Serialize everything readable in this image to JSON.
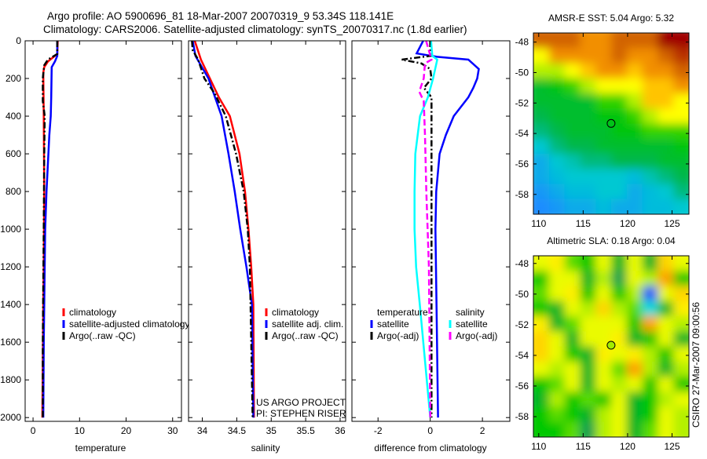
{
  "header": {
    "title_line1": "Argo profile: AO 5900696_81 18-Mar-2007 20070319_9 53.34S 118.141E",
    "title_line2": "Climatology: CARS2006. Satellite-adjusted climatology: synTS_20070317.nc (1.8d earlier)"
  },
  "credits": {
    "project": "US ARGO PROJECT",
    "pi": "PI: STEPHEN RISER",
    "stamp": "CSIRO 27-Mar-2007 09:00:56"
  },
  "chart_data": [
    {
      "id": "temperature",
      "type": "line",
      "xlabel": "temperature",
      "ylabel": "",
      "xlim": [
        -1.7,
        31.9
      ],
      "ylim": [
        0,
        2020
      ],
      "y_reversed": true,
      "xticks": [
        0,
        10,
        20,
        30
      ],
      "yticks": [
        0,
        200,
        400,
        600,
        800,
        1000,
        1200,
        1400,
        1600,
        1800,
        2000
      ],
      "legend": [
        "climatology",
        "satellite-adjusted climatology",
        "Argo(..raw -QC)"
      ],
      "legend_placement": "lower-middle",
      "series": [
        {
          "name": "climatology",
          "color": "#ff0000",
          "style": "solid",
          "points": [
            [
              0,
              5.3
            ],
            [
              70,
              5.2
            ],
            [
              90,
              4.2
            ],
            [
              110,
              3.2
            ],
            [
              140,
              2.4
            ],
            [
              170,
              2.2
            ],
            [
              400,
              2.3
            ],
            [
              800,
              2.4
            ],
            [
              1200,
              2.3
            ],
            [
              1400,
              2.2
            ],
            [
              2000,
              2.0
            ]
          ]
        },
        {
          "name": "satellite-adjusted climatology",
          "color": "#0000ff",
          "style": "solid",
          "points": [
            [
              0,
              5.2
            ],
            [
              80,
              5.2
            ],
            [
              110,
              4.7
            ],
            [
              140,
              4.0
            ],
            [
              300,
              3.9
            ],
            [
              400,
              3.8
            ],
            [
              500,
              3.5
            ],
            [
              600,
              3.3
            ],
            [
              800,
              2.9
            ],
            [
              1000,
              2.6
            ],
            [
              1200,
              2.5
            ],
            [
              1600,
              2.3
            ],
            [
              2000,
              2.2
            ]
          ]
        },
        {
          "name": "Argo(..raw -QC)",
          "color": "#000000",
          "style": "dashdot",
          "points": [
            [
              0,
              5.2
            ],
            [
              70,
              5.2
            ],
            [
              85,
              4.2
            ],
            [
              100,
              3.2
            ],
            [
              130,
              2.4
            ],
            [
              200,
              2.1
            ],
            [
              320,
              2.1
            ],
            [
              400,
              2.5
            ],
            [
              600,
              2.4
            ],
            [
              1000,
              2.3
            ],
            [
              1600,
              2.1
            ],
            [
              2000,
              2.1
            ]
          ]
        }
      ]
    },
    {
      "id": "salinity",
      "type": "line",
      "xlabel": "salinity",
      "xlim": [
        33.8,
        36.08
      ],
      "ylim": [
        0,
        2020
      ],
      "y_reversed": true,
      "xticks": [
        34,
        34.5,
        35,
        35.5,
        36
      ],
      "xticklabels": [
        "34",
        "34.5",
        "35",
        "35.5",
        "36"
      ],
      "legend": [
        "climatology",
        "satellite adj. clim.",
        "Argo(..raw -QC)"
      ],
      "legend_placement": "lower-right",
      "series": [
        {
          "name": "climatology",
          "color": "#ff0000",
          "style": "solid",
          "points": [
            [
              0,
              33.89
            ],
            [
              100,
              33.98
            ],
            [
              200,
              34.11
            ],
            [
              300,
              34.24
            ],
            [
              400,
              34.4
            ],
            [
              600,
              34.54
            ],
            [
              800,
              34.62
            ],
            [
              1000,
              34.67
            ],
            [
              1200,
              34.71
            ],
            [
              1400,
              34.74
            ],
            [
              2000,
              34.75
            ]
          ]
        },
        {
          "name": "satellite adj. clim.",
          "color": "#0000ff",
          "style": "solid",
          "points": [
            [
              0,
              33.86
            ],
            [
              80,
              33.9
            ],
            [
              200,
              34.09
            ],
            [
              400,
              34.28
            ],
            [
              600,
              34.38
            ],
            [
              800,
              34.47
            ],
            [
              1000,
              34.55
            ],
            [
              1200,
              34.64
            ],
            [
              1400,
              34.72
            ],
            [
              2000,
              34.74
            ]
          ]
        },
        {
          "name": "Argo(..raw -QC)",
          "color": "#000000",
          "style": "dashdot",
          "points": [
            [
              0,
              33.85
            ],
            [
              50,
              33.86
            ],
            [
              100,
              33.94
            ],
            [
              200,
              34.03
            ],
            [
              280,
              34.18
            ],
            [
              400,
              34.34
            ],
            [
              600,
              34.49
            ],
            [
              800,
              34.6
            ],
            [
              1000,
              34.66
            ],
            [
              1200,
              34.69
            ],
            [
              2000,
              34.73
            ]
          ]
        }
      ]
    },
    {
      "id": "difference",
      "type": "line",
      "xlabel": "difference from climatology",
      "xlim": [
        -3,
        3.05
      ],
      "ylim": [
        0,
        2020
      ],
      "y_reversed": true,
      "xticks": [
        -2,
        0,
        2
      ],
      "legend_headers": [
        "temperature",
        "salinity"
      ],
      "legend": [
        "satellite",
        "Argo(-adj)",
        "satellite",
        "Argo(-adj)"
      ],
      "legend_placement": "lower-middle",
      "series": [
        {
          "name": "temperature satellite",
          "color": "#0000ff",
          "style": "solid",
          "points": [
            [
              0,
              -0.27
            ],
            [
              67,
              -0.52
            ],
            [
              85,
              0.26
            ],
            [
              100,
              1.46
            ],
            [
              150,
              1.86
            ],
            [
              200,
              1.8
            ],
            [
              250,
              1.65
            ],
            [
              300,
              1.46
            ],
            [
              400,
              0.9
            ],
            [
              500,
              0.6
            ],
            [
              600,
              0.36
            ],
            [
              800,
              0.23
            ],
            [
              1000,
              0.2
            ],
            [
              1500,
              0.25
            ],
            [
              2000,
              0.3
            ]
          ]
        },
        {
          "name": "temperature Argo(-adj)",
          "color": "#000000",
          "style": "dashdot",
          "points": [
            [
              0,
              0
            ],
            [
              80,
              0
            ],
            [
              100,
              -1.09
            ],
            [
              120,
              -0.34
            ],
            [
              150,
              0
            ],
            [
              200,
              0.05
            ],
            [
              250,
              -0.24
            ],
            [
              300,
              0.05
            ],
            [
              400,
              0.05
            ],
            [
              1000,
              0.05
            ],
            [
              2000,
              0.05
            ]
          ]
        },
        {
          "name": "salinity satellite",
          "color": "#00ffff",
          "style": "solid",
          "points": [
            [
              0,
              0.03
            ],
            [
              80,
              0.08
            ],
            [
              100,
              0.27
            ],
            [
              200,
              0.11
            ],
            [
              300,
              -0.09
            ],
            [
              400,
              -0.39
            ],
            [
              600,
              -0.57
            ],
            [
              800,
              -0.6
            ],
            [
              1000,
              -0.6
            ],
            [
              1200,
              -0.54
            ],
            [
              1400,
              -0.4
            ],
            [
              2000,
              0
            ]
          ]
        },
        {
          "name": "salinity Argo(-adj)",
          "color": "#ff00ff",
          "style": "dashed",
          "points": [
            [
              0,
              -0.16
            ],
            [
              100,
              0.05
            ],
            [
              120,
              -0.2
            ],
            [
              200,
              -0.25
            ],
            [
              270,
              -0.42
            ],
            [
              320,
              -0.25
            ],
            [
              500,
              -0.2
            ],
            [
              800,
              -0.15
            ],
            [
              1200,
              -0.05
            ],
            [
              2000,
              0
            ]
          ]
        }
      ]
    },
    {
      "id": "sst_map",
      "type": "heatmap",
      "title": "AMSR-E SST: 5.04 Argo: 5.32",
      "xlim": [
        109.4,
        126.9
      ],
      "ylim": [
        -47.4,
        -59.3
      ],
      "xticks": [
        110,
        115,
        120,
        125
      ],
      "yticks": [
        -48,
        -50,
        -52,
        -54,
        -56,
        -58
      ],
      "argo_point": {
        "lon": 118.141,
        "lat": -53.34,
        "value": 5.32,
        "filled": false
      },
      "colormap": [
        [
          3,
          "#1e8cff"
        ],
        [
          4,
          "#00c8d2"
        ],
        [
          4.7,
          "#00b45a"
        ],
        [
          5.3,
          "#00c800"
        ],
        [
          6,
          "#b4f000"
        ],
        [
          6.5,
          "#ffff00"
        ],
        [
          7.3,
          "#ffa000"
        ],
        [
          8,
          "#d26400"
        ],
        [
          9,
          "#a00000"
        ]
      ],
      "grid": [
        [
          8,
          8,
          8,
          7.5,
          7.5,
          8,
          8,
          8,
          9,
          9
        ],
        [
          6.5,
          7.5,
          7.5,
          7.5,
          7.5,
          8,
          7.5,
          7.5,
          8,
          8.5
        ],
        [
          6,
          6,
          6.5,
          7,
          7.5,
          7.5,
          7,
          7.5,
          7.5,
          8
        ],
        [
          5,
          5.2,
          5.5,
          6,
          6.5,
          6.5,
          6.5,
          7,
          7,
          7.5
        ],
        [
          5,
          5,
          5,
          5,
          5.5,
          5.5,
          6,
          7,
          7,
          6.5
        ],
        [
          4.8,
          5,
          5,
          5,
          5.2,
          5.2,
          5.5,
          6,
          6.5,
          6.5
        ],
        [
          4.5,
          4.8,
          5,
          5,
          5,
          5.2,
          5.2,
          5.5,
          5.5,
          5.5
        ],
        [
          4,
          4.5,
          4.8,
          4.8,
          5,
          5,
          5,
          5,
          5,
          5.2
        ],
        [
          3.5,
          4,
          4.2,
          4.5,
          4.5,
          4.8,
          4.8,
          4.8,
          5,
          5
        ],
        [
          3.5,
          3.8,
          4,
          4,
          4,
          4,
          3.8,
          4.2,
          4.5,
          4.8
        ],
        [
          3.2,
          3.5,
          3.8,
          3.8,
          4,
          4,
          3.5,
          3.8,
          4,
          4.5
        ],
        [
          3,
          3.2,
          3.5,
          3.5,
          3.8,
          3.5,
          3.5,
          3.8,
          3.8,
          4
        ]
      ]
    },
    {
      "id": "sla_map",
      "type": "heatmap",
      "title": "Altimetric SLA: 0.18 Argo: 0.04",
      "xlim": [
        109.4,
        126.9
      ],
      "ylim": [
        -47.5,
        -59.33
      ],
      "xticks": [
        110,
        115,
        120,
        125
      ],
      "yticks": [
        -48,
        -50,
        -52,
        -54,
        -56,
        -58
      ],
      "argo_point": {
        "lon": 118.141,
        "lat": -53.34,
        "value": 0.04,
        "filled": true
      },
      "colormap": [
        [
          -0.4,
          "#0050ff"
        ],
        [
          -0.3,
          "#00dcdc"
        ],
        [
          -0.15,
          "#00a050"
        ],
        [
          -0.05,
          "#00c800"
        ],
        [
          0.05,
          "#b4f000"
        ],
        [
          0.12,
          "#ffff00"
        ],
        [
          0.3,
          "#ffa000"
        ]
      ],
      "grid": [
        [
          0.1,
          0.15,
          0,
          -0.05,
          0.1,
          -0.1,
          0.1,
          -0.1,
          0.2,
          0.1
        ],
        [
          -0.05,
          0.1,
          0.1,
          -0.1,
          0.05,
          -0.15,
          0.1,
          0.05,
          0.3,
          -0.05
        ],
        [
          0,
          0.1,
          0.15,
          -0.05,
          0.1,
          -0.05,
          0.05,
          -0.4,
          0.1,
          0.2
        ],
        [
          -0.05,
          -0.1,
          0.1,
          0.05,
          0.2,
          0.05,
          0,
          -0.3,
          -0.1,
          0.15
        ],
        [
          0.15,
          -0.1,
          0,
          0.1,
          0.1,
          0.1,
          -0.05,
          0.3,
          0.1,
          0.05
        ],
        [
          0.2,
          0.1,
          -0.1,
          0.1,
          0.1,
          0.15,
          -0.1,
          -0.05,
          0.1,
          -0.1
        ],
        [
          0.2,
          0.1,
          -0.05,
          -0.1,
          0.15,
          0.1,
          0.15,
          0.05,
          -0.05,
          0.1
        ],
        [
          0.1,
          0.05,
          0.1,
          -0.1,
          0.1,
          0,
          0.3,
          0.05,
          -0.1,
          0.05
        ],
        [
          -0.05,
          0,
          0.1,
          -0.1,
          0.1,
          0.05,
          0.1,
          -0.05,
          0.1,
          -0.05
        ],
        [
          -0.1,
          0.05,
          -0.05,
          0,
          -0.05,
          0.1,
          -0.1,
          -0.05,
          0.05,
          0.1
        ],
        [
          -0.05,
          0,
          -0.05,
          -0.1,
          0.05,
          0.1,
          -0.1,
          -0.05,
          0.1,
          0.05
        ],
        [
          -0.05,
          -0.05,
          0,
          -0.15,
          0.05,
          0.1,
          -0.1,
          0,
          0.1,
          0.05
        ]
      ]
    }
  ]
}
